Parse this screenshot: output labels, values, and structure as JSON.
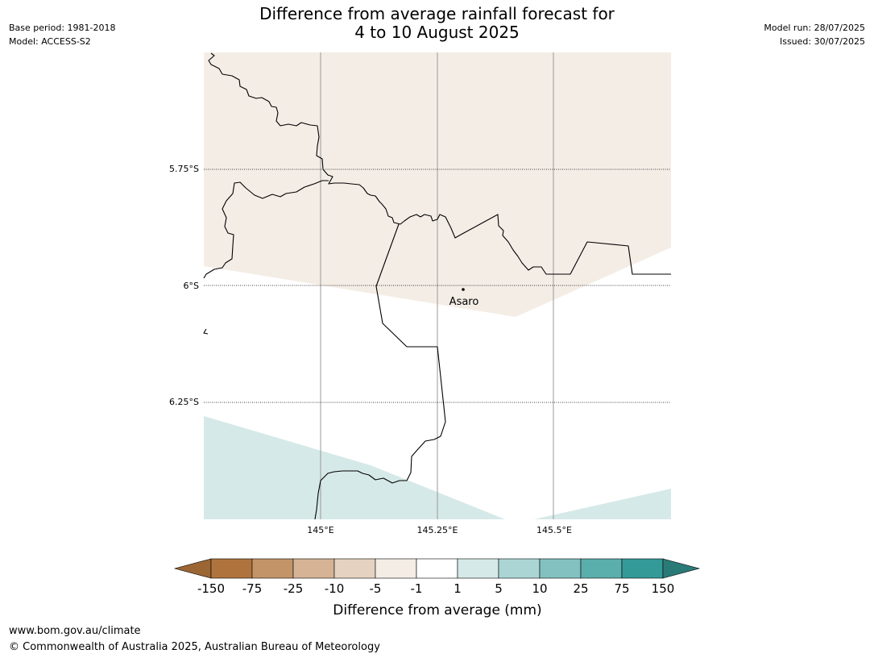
{
  "header": {
    "title_line1": "Difference from average rainfall forecast for",
    "title_line2": "4 to 10 August 2025",
    "base_period": "Base period: 1981-2018",
    "model": "Model: ACCESS-S2",
    "model_run": "Model run: 28/07/2025",
    "issued": "Issued: 30/07/2025"
  },
  "map": {
    "lat_labels": [
      "5.75°S",
      "6°S",
      "6.25°S"
    ],
    "lon_labels": [
      "145°E",
      "145.25°E",
      "145.5°E"
    ],
    "place_label": "Asaro",
    "colors": {
      "land_outline": "#000000",
      "gridline": "#999999",
      "fill_light_brown": "#f4ede6",
      "fill_light_teal": "#d5e9e8"
    }
  },
  "legend": {
    "title": "Difference from average (mm)",
    "ticks": [
      "-150",
      "-75",
      "-25",
      "-10",
      "-5",
      "-1",
      "1",
      "5",
      "10",
      "25",
      "75",
      "150"
    ],
    "colors": [
      "#9c6634",
      "#af743d",
      "#c29467",
      "#d5b394",
      "#e5d2c1",
      "#f4ede6",
      "#ffffff",
      "#d5e9e8",
      "#abd5d5",
      "#82c1bf",
      "#5aaeac",
      "#339a98",
      "#2a7a78"
    ]
  },
  "footer": {
    "url": "www.bom.gov.au/climate",
    "copyright": "© Commonwealth of Australia 2025, Australian Bureau of Meteorology"
  }
}
